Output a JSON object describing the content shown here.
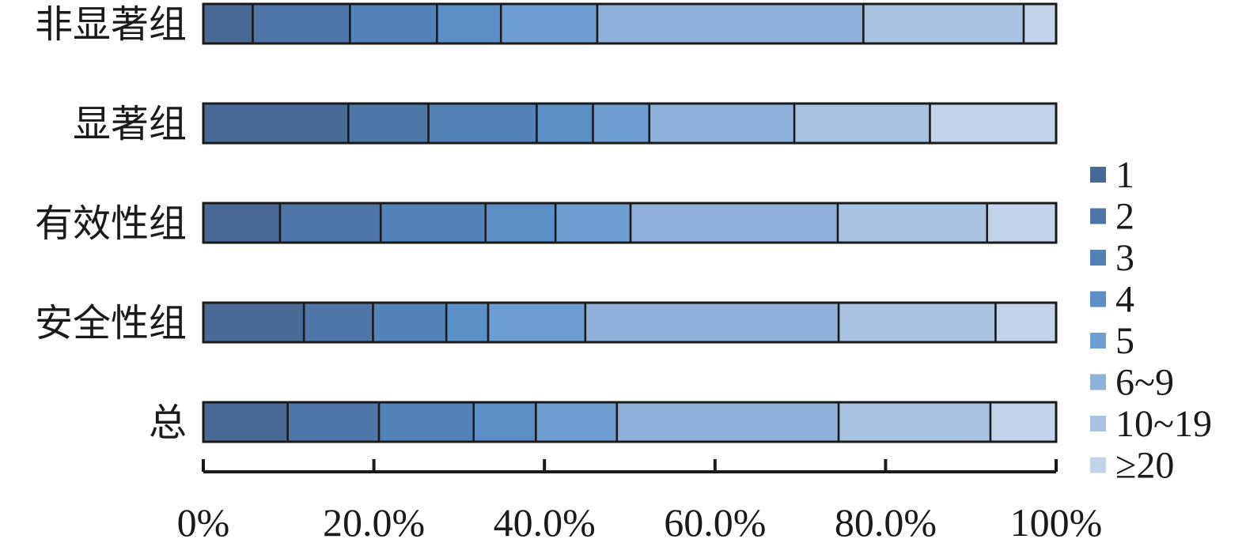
{
  "chart_data": {
    "type": "bar",
    "orientation": "horizontal",
    "stacked": true,
    "percent_stacked": true,
    "title": "",
    "xlabel": "",
    "ylabel": "",
    "categories": [
      "非显著组",
      "显著组",
      "有效性组",
      "安全性组",
      "总"
    ],
    "x_ticks": [
      "0%",
      "20.0%",
      "40.0%",
      "60.0%",
      "80.0%",
      "100%"
    ],
    "xlim": [
      0,
      100
    ],
    "grid": false,
    "legend_position": "right",
    "series": [
      {
        "name": "1",
        "color": "#4a6a96",
        "values": [
          5.8,
          17.0,
          9.0,
          11.8,
          9.9
        ]
      },
      {
        "name": "2",
        "color": "#4e77a8",
        "values": [
          11.4,
          9.4,
          11.8,
          8.1,
          10.7
        ]
      },
      {
        "name": "3",
        "color": "#5282b6",
        "values": [
          10.2,
          12.7,
          12.3,
          8.6,
          11.1
        ]
      },
      {
        "name": "4",
        "color": "#5d8fc7",
        "values": [
          7.5,
          6.6,
          8.2,
          4.9,
          7.3
        ]
      },
      {
        "name": "5",
        "color": "#6e9dd0",
        "values": [
          11.3,
          6.6,
          8.8,
          11.4,
          9.5
        ]
      },
      {
        "name": "6~9",
        "color": "#8eb0d9",
        "values": [
          31.2,
          17.0,
          24.3,
          29.7,
          26.0
        ]
      },
      {
        "name": "10~19",
        "color": "#a8c3e2",
        "values": [
          18.8,
          15.9,
          17.5,
          18.4,
          17.8
        ]
      },
      {
        "name": "≥20",
        "color": "#c1d2e9",
        "values": [
          3.8,
          14.8,
          8.1,
          7.1,
          7.7
        ]
      }
    ]
  }
}
